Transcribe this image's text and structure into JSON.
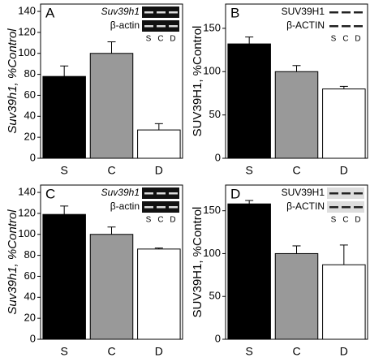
{
  "chart_data": [
    {
      "type": "bar",
      "panel_label": "A",
      "ylabel": "Suv39h1, %Control",
      "inset_labels": [
        "Suv39h1",
        "β-actin"
      ],
      "categories": [
        "S",
        "C",
        "D"
      ],
      "values": [
        78,
        100,
        27
      ],
      "errors": [
        10,
        11,
        6
      ],
      "colors": [
        "#000000",
        "#999999",
        "#ffffff"
      ],
      "ylim": [
        0,
        147
      ],
      "yticks": [
        0,
        20,
        40,
        60,
        80,
        100,
        120,
        140
      ]
    },
    {
      "type": "bar",
      "panel_label": "B",
      "ylabel": "SUV39H1, %Control",
      "inset_labels": [
        "SUV39H1",
        "β-ACTIN"
      ],
      "categories": [
        "S",
        "C",
        "D"
      ],
      "values": [
        132,
        100,
        80
      ],
      "errors": [
        8,
        7,
        3
      ],
      "colors": [
        "#000000",
        "#999999",
        "#ffffff"
      ],
      "ylim": [
        0,
        178
      ],
      "yticks": [
        0,
        50,
        100,
        150
      ]
    },
    {
      "type": "bar",
      "panel_label": "C",
      "ylabel": "Suv39h1, %Control",
      "inset_labels": [
        "Suv39h1",
        "β-actin"
      ],
      "categories": [
        "S",
        "C",
        "D"
      ],
      "values": [
        119,
        100,
        86
      ],
      "errors": [
        8,
        7,
        1
      ],
      "colors": [
        "#000000",
        "#999999",
        "#ffffff"
      ],
      "ylim": [
        0,
        147
      ],
      "yticks": [
        0,
        20,
        40,
        60,
        80,
        100,
        120,
        140
      ]
    },
    {
      "type": "bar",
      "panel_label": "D",
      "ylabel": "SUV39H1, %Control",
      "inset_labels": [
        "SUV39H1",
        "β-ACTIN"
      ],
      "categories": [
        "S",
        "C",
        "D"
      ],
      "values": [
        158,
        100,
        87
      ],
      "errors": [
        4,
        9,
        23
      ],
      "colors": [
        "#000000",
        "#999999",
        "#ffffff"
      ],
      "ylim": [
        0,
        180
      ],
      "yticks": [
        0,
        50,
        100,
        150
      ]
    }
  ]
}
